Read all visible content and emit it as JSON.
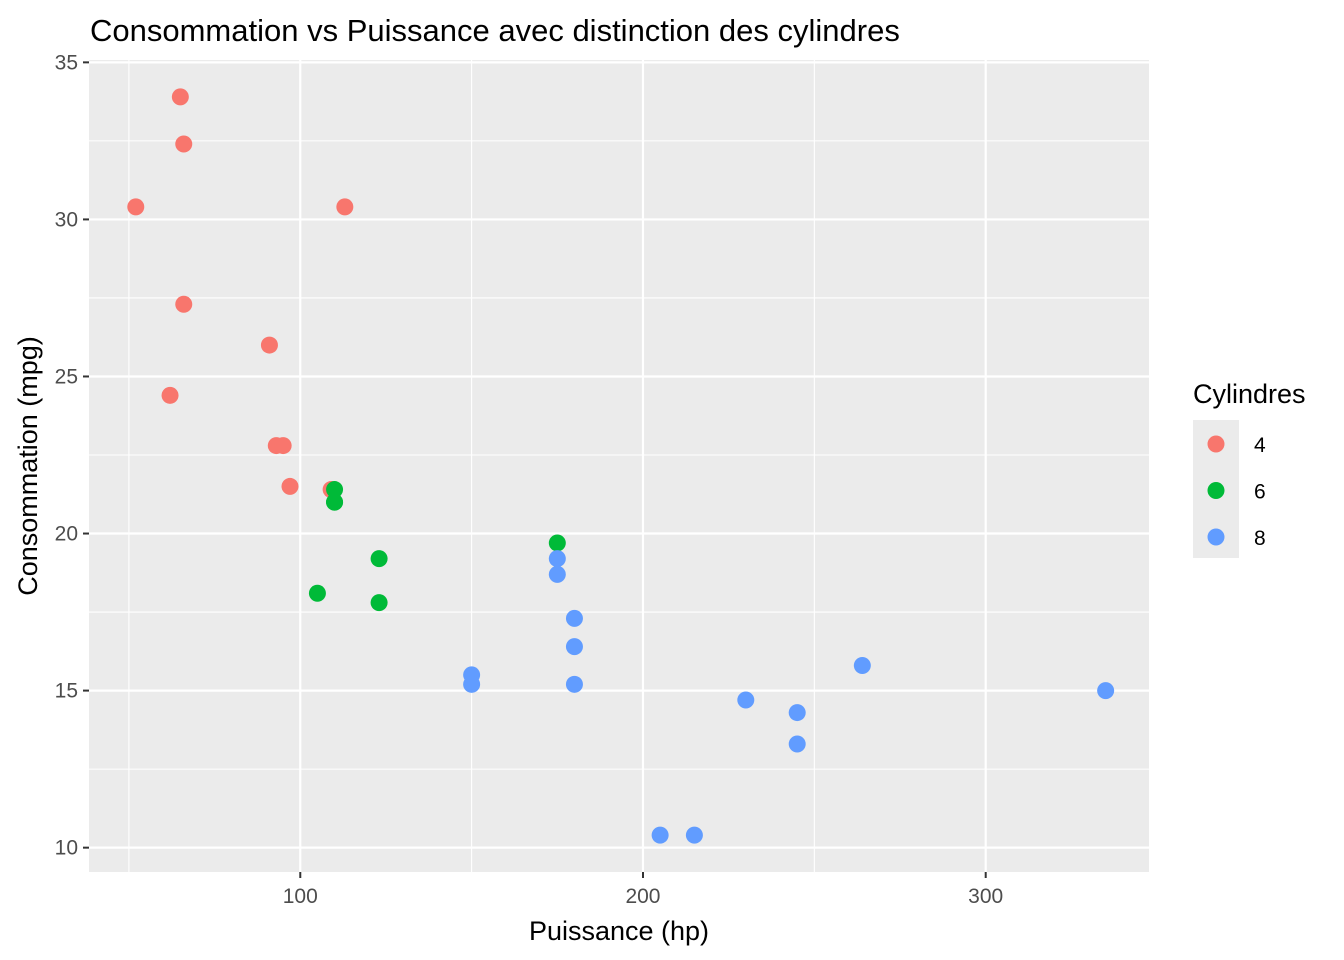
{
  "chart_data": {
    "type": "scatter",
    "title": "Consommation vs Puissance avec distinction des cylindres",
    "xlabel": "Puissance (hp)",
    "ylabel": "Consommation (mpg)",
    "xlim": [
      38.35,
      347.65
    ],
    "ylim": [
      9.225,
      35.075
    ],
    "xticks": [
      100,
      200,
      300
    ],
    "xticks_minor": [
      50,
      150,
      250
    ],
    "yticks": [
      10,
      15,
      20,
      25,
      30,
      35
    ],
    "yticks_minor": [
      12.5,
      17.5,
      22.5,
      27.5,
      32.5
    ],
    "grid": true,
    "background": "#EBEBEB",
    "legend": {
      "title": "Cylindres",
      "position": "right",
      "entries": [
        {
          "label": "4",
          "color": "#F8766D"
        },
        {
          "label": "6",
          "color": "#00BA38"
        },
        {
          "label": "8",
          "color": "#619CFF"
        }
      ]
    },
    "series": [
      {
        "name": "4",
        "color": "#F8766D",
        "points": [
          [
            93,
            22.8
          ],
          [
            62,
            24.4
          ],
          [
            95,
            22.8
          ],
          [
            66,
            32.4
          ],
          [
            52,
            30.4
          ],
          [
            65,
            33.9
          ],
          [
            97,
            21.5
          ],
          [
            66,
            27.3
          ],
          [
            91,
            26.0
          ],
          [
            113,
            30.4
          ],
          [
            109,
            21.4
          ]
        ]
      },
      {
        "name": "6",
        "color": "#00BA38",
        "points": [
          [
            110,
            21.0
          ],
          [
            110,
            21.0
          ],
          [
            110,
            21.4
          ],
          [
            105,
            18.1
          ],
          [
            123,
            19.2
          ],
          [
            123,
            17.8
          ],
          [
            175,
            19.7
          ]
        ]
      },
      {
        "name": "8",
        "color": "#619CFF",
        "points": [
          [
            175,
            18.7
          ],
          [
            245,
            14.3
          ],
          [
            180,
            16.4
          ],
          [
            180,
            17.3
          ],
          [
            180,
            15.2
          ],
          [
            205,
            10.4
          ],
          [
            215,
            10.4
          ],
          [
            230,
            14.7
          ],
          [
            150,
            15.5
          ],
          [
            150,
            15.2
          ],
          [
            245,
            13.3
          ],
          [
            175,
            19.2
          ],
          [
            264,
            15.8
          ],
          [
            335,
            15.0
          ]
        ]
      }
    ]
  }
}
